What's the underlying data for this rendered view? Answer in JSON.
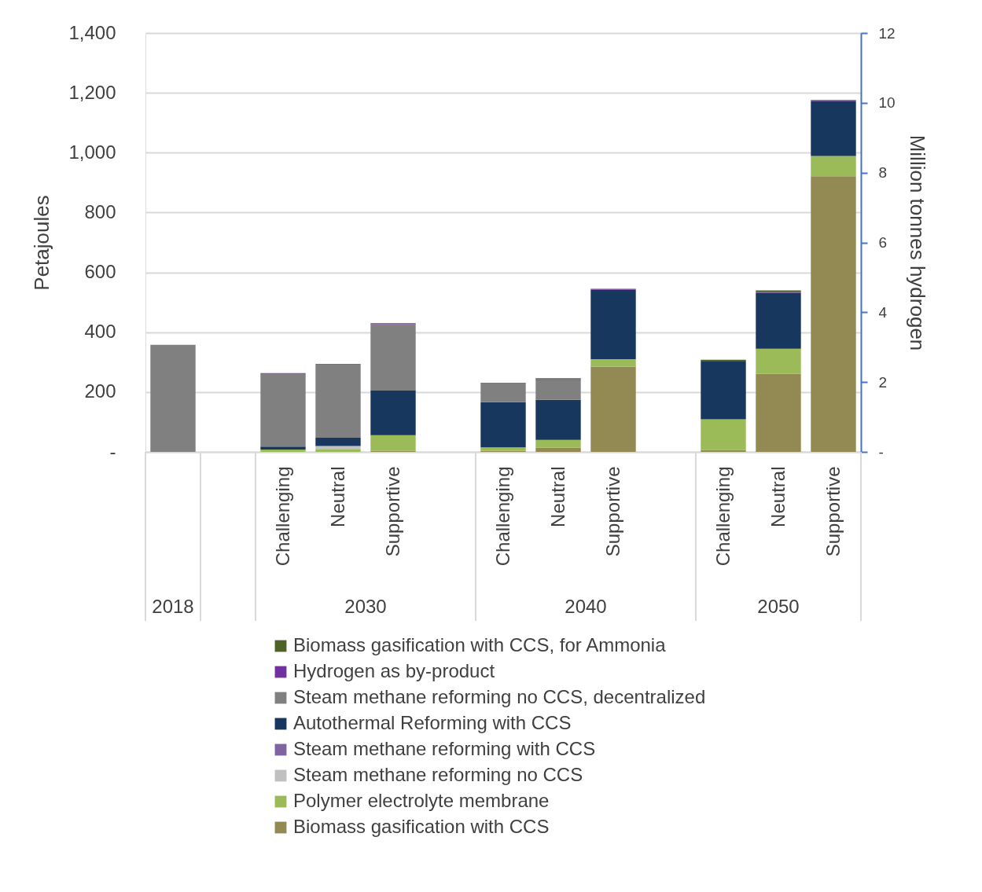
{
  "chart_data": {
    "type": "bar",
    "stacked": true,
    "ylabel": "Petajoules",
    "y2label": "Million tonnes hydrogen",
    "categories": [
      null,
      null,
      "Challenging",
      "Neutral",
      "Supportive",
      null,
      "Challenging",
      "Neutral",
      "Supportive",
      null,
      "Challenging",
      "Neutral",
      "Supportive"
    ],
    "annotations": [
      "2018",
      "2030",
      "2040",
      "2050"
    ],
    "series": [
      {
        "name": "Biomass gasification with CCS",
        "color": "#938953",
        "values": [
          null,
          null,
          null,
          null,
          3,
          null,
          4,
          14,
          285,
          null,
          6,
          261,
          921
        ]
      },
      {
        "name": "Polymer electrolyte membrane",
        "color": "#9bbb59",
        "values": [
          null,
          null,
          8,
          10,
          53,
          null,
          11,
          26,
          25,
          null,
          103,
          84,
          68
        ]
      },
      {
        "name": "Steam methane reforming no CCS",
        "color": "#c0c0c0",
        "values": [
          null,
          null,
          null,
          10,
          null,
          null,
          null,
          null,
          null,
          null,
          null,
          null,
          null
        ]
      },
      {
        "name": "Steam methane reforming with CCS",
        "color": "#8064a2",
        "values": [
          null,
          null,
          null,
          null,
          null,
          null,
          null,
          null,
          null,
          null,
          null,
          null,
          null
        ]
      },
      {
        "name": "Autothermal Reforming with CCS",
        "color": "#17375e",
        "values": [
          null,
          null,
          10,
          27,
          149,
          null,
          151,
          134,
          232,
          null,
          193,
          187,
          184
        ]
      },
      {
        "name": "Steam methane reforming no CCS, decentralized",
        "color": "#808080",
        "values": [
          358,
          null,
          243,
          245,
          222,
          null,
          63,
          66,
          null,
          null,
          null,
          null,
          null
        ]
      },
      {
        "name": "Hydrogen as by-product",
        "color": "#7030a0",
        "values": [
          null,
          null,
          2,
          2,
          3,
          null,
          null,
          3,
          3,
          null,
          null,
          3,
          3
        ]
      },
      {
        "name": "Biomass gasification with CCS, for Ammonia",
        "color": "#4f6228",
        "values": [
          null,
          null,
          null,
          null,
          null,
          null,
          2,
          3,
          null,
          null,
          6,
          5,
          null
        ]
      }
    ],
    "ylim": [
      0,
      1400
    ],
    "yticks": [
      {
        "value": 0,
        "label": "-"
      },
      200,
      400,
      600,
      800,
      {
        "value": 1000,
        "label": "1,000"
      },
      {
        "value": 1200,
        "label": "1,200"
      },
      {
        "value": 1400,
        "label": "1,400"
      }
    ],
    "y2lim": [
      0,
      12
    ],
    "y2ticks": [
      {
        "value": 0,
        "label": "-"
      },
      2,
      4,
      6,
      8,
      10,
      12
    ],
    "grid": "y",
    "legend": "bottom"
  }
}
